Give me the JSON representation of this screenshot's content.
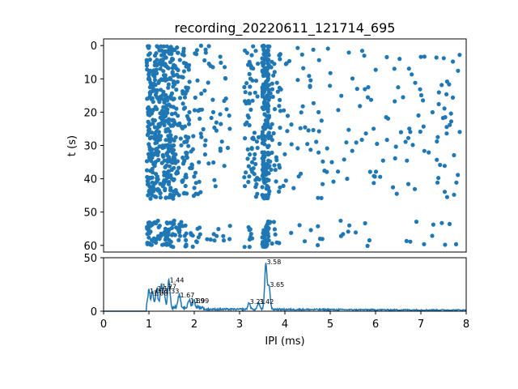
{
  "chart_data": [
    {
      "type": "scatter",
      "panel": "raster",
      "title": "recording_20220611_121714_695",
      "xlabel": "",
      "ylabel": "t (s)",
      "xlim": [
        0,
        8
      ],
      "ylim": [
        62,
        -2
      ],
      "yticks": [
        "0",
        "10",
        "20",
        "30",
        "40",
        "50",
        "60"
      ],
      "ytick_values": [
        0,
        10,
        20,
        30,
        40,
        50,
        60
      ],
      "color": "#1f77b4",
      "clusters": [
        {
          "x_center": 1.05,
          "x_spread": 0.1,
          "count": 150
        },
        {
          "x_center": 1.25,
          "x_spread": 0.12,
          "count": 150
        },
        {
          "x_center": 1.45,
          "x_spread": 0.1,
          "count": 170
        },
        {
          "x_center": 1.7,
          "x_spread": 0.15,
          "count": 90
        },
        {
          "x_center": 1.95,
          "x_spread": 0.2,
          "count": 60
        },
        {
          "x_center": 2.4,
          "x_spread": 0.4,
          "count": 60
        },
        {
          "x_center": 3.25,
          "x_spread": 0.15,
          "count": 60
        },
        {
          "x_center": 3.58,
          "x_spread": 0.08,
          "count": 190
        },
        {
          "x_center": 3.7,
          "x_spread": 0.2,
          "count": 70
        },
        {
          "x_center": 5.5,
          "x_spread": 2.4,
          "count": 220
        }
      ],
      "t_segments": [
        [
          0,
          46
        ],
        [
          52.5,
          60.5
        ]
      ]
    },
    {
      "type": "line",
      "panel": "ipi-histogram",
      "xlabel": "IPI (ms)",
      "ylabel": "",
      "xlim": [
        0,
        8
      ],
      "ylim": [
        0,
        50
      ],
      "xticks": [
        "0",
        "1",
        "2",
        "3",
        "4",
        "5",
        "6",
        "7",
        "8"
      ],
      "xtick_values": [
        0,
        1,
        2,
        3,
        4,
        5,
        6,
        7,
        8
      ],
      "yticks": [
        "0",
        "50"
      ],
      "ytick_values": [
        0,
        50
      ],
      "color": "#1f77b4",
      "peaks": [
        {
          "x": 1.0,
          "y": 16,
          "label": "1.01"
        },
        {
          "x": 1.08,
          "y": 14,
          "label": "1.08"
        },
        {
          "x": 1.17,
          "y": 18,
          "label": "1.17"
        },
        {
          "x": 1.27,
          "y": 20,
          "label": "1.27"
        },
        {
          "x": 1.33,
          "y": 16,
          "label": "1.33"
        },
        {
          "x": 1.44,
          "y": 26,
          "label": "1.44"
        },
        {
          "x": 1.67,
          "y": 12,
          "label": "1.67"
        },
        {
          "x": 1.89,
          "y": 7,
          "label": "1.89"
        },
        {
          "x": 1.99,
          "y": 7,
          "label": "1.99"
        },
        {
          "x": 3.21,
          "y": 6,
          "label": "3.21"
        },
        {
          "x": 3.42,
          "y": 6,
          "label": "3.42"
        },
        {
          "x": 3.58,
          "y": 43,
          "label": "3.58"
        },
        {
          "x": 3.65,
          "y": 22,
          "label": "3.65"
        }
      ]
    }
  ]
}
